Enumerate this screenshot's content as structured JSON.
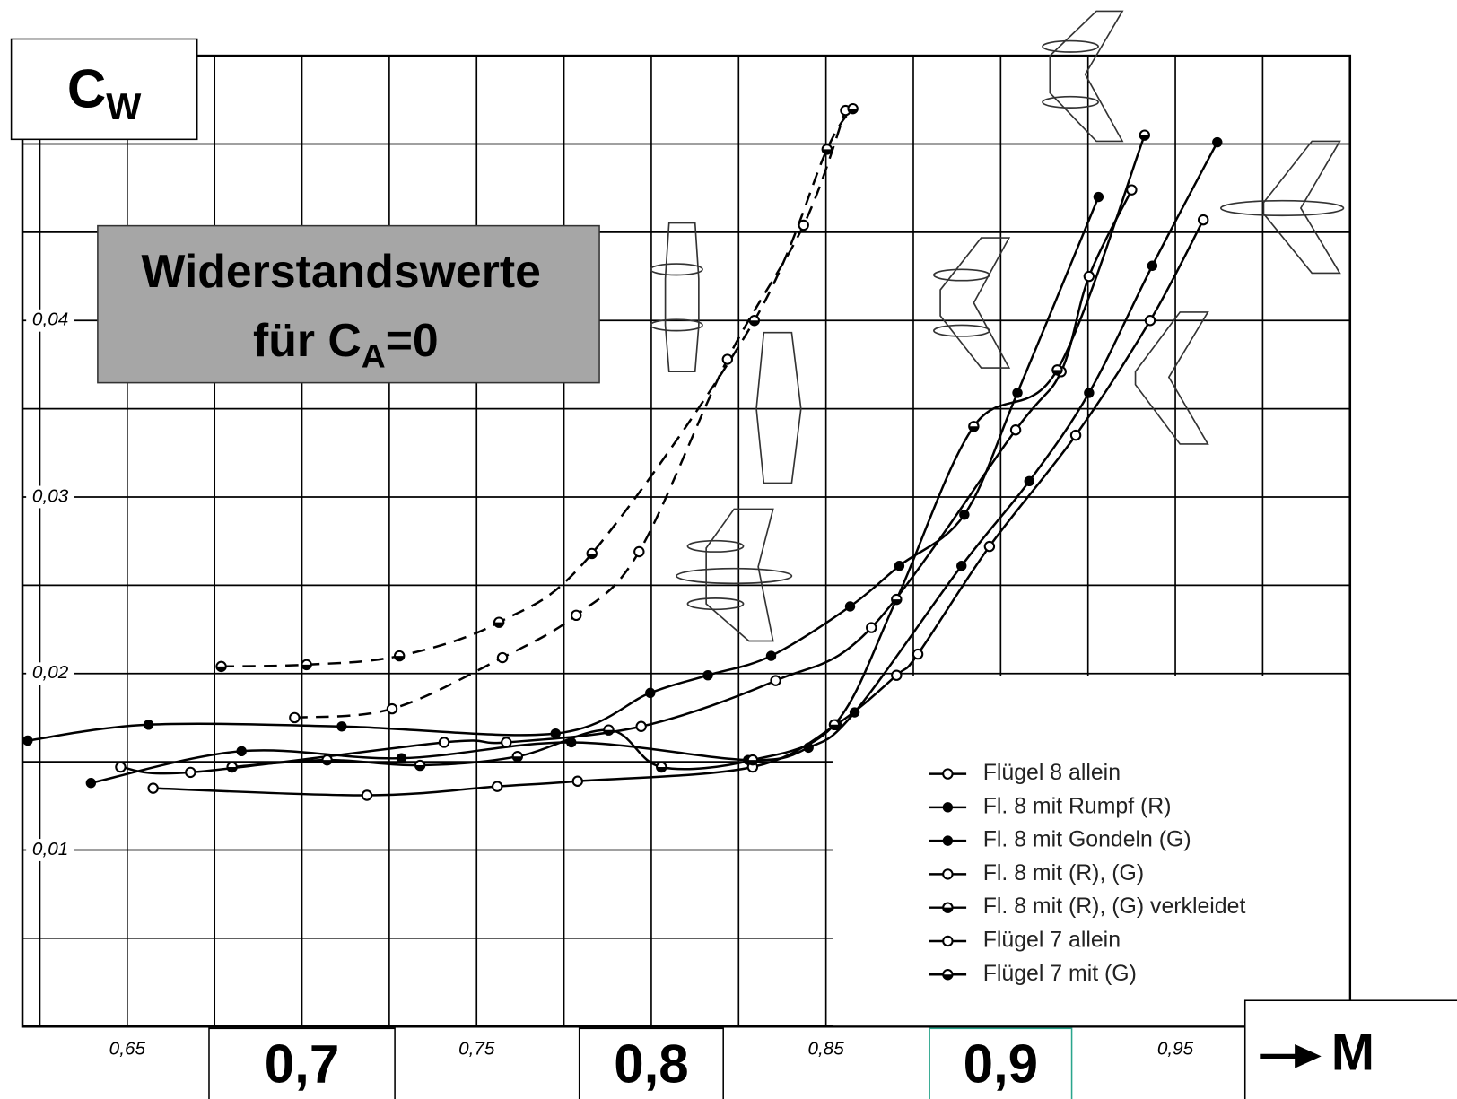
{
  "chart_data": {
    "type": "line",
    "title": {
      "line1": "Widerstandswerte",
      "line2": "für C",
      "line2_sub": "A",
      "line2_end": "=0"
    },
    "ylabel": {
      "text": "C",
      "sub": "W"
    },
    "xlabel": "M",
    "xlim": [
      0.62,
      1.0
    ],
    "ylim": [
      0,
      0.055
    ],
    "xticks": [
      {
        "value": 0.65,
        "label": "0,65"
      },
      {
        "value": 0.7,
        "label": "0,7"
      },
      {
        "value": 0.75,
        "label": "0,75"
      },
      {
        "value": 0.8,
        "label": "0,8"
      },
      {
        "value": 0.85,
        "label": "0,85"
      },
      {
        "value": 0.9,
        "label": "0,9"
      },
      {
        "value": 0.95,
        "label": "0,95"
      }
    ],
    "yticks": [
      {
        "value": 0.01,
        "label": "0,01"
      },
      {
        "value": 0.02,
        "label": "0,02"
      },
      {
        "value": 0.03,
        "label": "0,03"
      },
      {
        "value": 0.04,
        "label": "0,04"
      }
    ],
    "minor_xticks": [
      0.625,
      0.675,
      0.725,
      0.775,
      0.825,
      0.875,
      0.925,
      0.975
    ],
    "minor_yticks": [
      0.005,
      0.015,
      0.025,
      0.035,
      0.045,
      0.05
    ],
    "grid": true,
    "legend": "lower right",
    "series": [
      {
        "name": "Flügel 8 allein",
        "color": "#000000",
        "marker": "open",
        "dashed": false,
        "x": [
          0.6574,
          0.7186,
          0.7559,
          0.7789,
          0.829,
          0.8529,
          0.8702,
          0.8763,
          0.8968,
          0.9215,
          0.9428,
          0.958
        ],
        "values": [
          0.0135,
          0.0131,
          0.0136,
          0.0139,
          0.0147,
          0.0171,
          0.0199,
          0.0211,
          0.0272,
          0.0335,
          0.04,
          0.0457
        ]
      },
      {
        "name": "Fl. 8 mit Rumpf (R)",
        "color": "#000000",
        "marker": "filled",
        "dashed": false,
        "x": [
          0.6396,
          0.6827,
          0.7285,
          0.7771,
          0.8277,
          0.845,
          0.8582,
          0.8888,
          0.9082,
          0.9253,
          0.9434,
          0.962
        ],
        "values": [
          0.0138,
          0.0156,
          0.0152,
          0.0161,
          0.0151,
          0.0158,
          0.0178,
          0.0261,
          0.0309,
          0.0359,
          0.0431,
          0.0501
        ]
      },
      {
        "name": "Fl. 8 mit Gondeln (G)",
        "color": "#000000",
        "marker": "filled",
        "dashed": false,
        "x": [
          0.6215,
          0.6561,
          0.7114,
          0.7726,
          0.7997,
          0.8162,
          0.8343,
          0.8569,
          0.871,
          0.8896,
          0.9048,
          0.928
        ],
        "values": [
          0.0162,
          0.0171,
          0.017,
          0.0166,
          0.0189,
          0.0199,
          0.021,
          0.0238,
          0.0261,
          0.029,
          0.0359,
          0.047
        ]
      },
      {
        "name": "Fl. 8 mit (R), (G)",
        "color": "#000000",
        "marker": "open",
        "dashed": false,
        "x": [
          0.6481,
          0.6681,
          0.7407,
          0.7585,
          0.7971,
          0.8356,
          0.863,
          0.9043,
          0.9173,
          0.9253,
          0.9375
        ],
        "values": [
          0.0147,
          0.0144,
          0.0161,
          0.0161,
          0.017,
          0.0196,
          0.0226,
          0.0338,
          0.0371,
          0.0425,
          0.0474
        ]
      },
      {
        "name": "Fl. 8 mit (R), (G) verkleidet",
        "color": "#000000",
        "marker": "half",
        "dashed": false,
        "x": [
          0.68,
          0.7072,
          0.7338,
          0.7617,
          0.7878,
          0.8029,
          0.829,
          0.8524,
          0.8702,
          0.8923,
          0.9162,
          0.9412
        ],
        "values": [
          0.0147,
          0.0151,
          0.0148,
          0.0153,
          0.0168,
          0.0147,
          0.0151,
          0.0171,
          0.0242,
          0.034,
          0.0372,
          0.0505
        ]
      },
      {
        "name": "Flügel 7 allein",
        "color": "#000000",
        "marker": "open",
        "dashed": true,
        "x": [
          0.6979,
          0.7258,
          0.7574,
          0.7785,
          0.7965,
          0.8218,
          0.8436,
          0.8556
        ],
        "values": [
          0.0175,
          0.018,
          0.0209,
          0.0233,
          0.0269,
          0.0378,
          0.0454,
          0.0519
        ]
      },
      {
        "name": "Flügel 7 mit (G)",
        "color": "#000000",
        "marker": "half",
        "dashed": true,
        "x": [
          0.6769,
          0.7013,
          0.7279,
          0.7564,
          0.783,
          0.8295,
          0.8503,
          0.8577
        ],
        "values": [
          0.0204,
          0.0205,
          0.021,
          0.0229,
          0.0268,
          0.04,
          0.0497,
          0.052
        ]
      }
    ]
  }
}
